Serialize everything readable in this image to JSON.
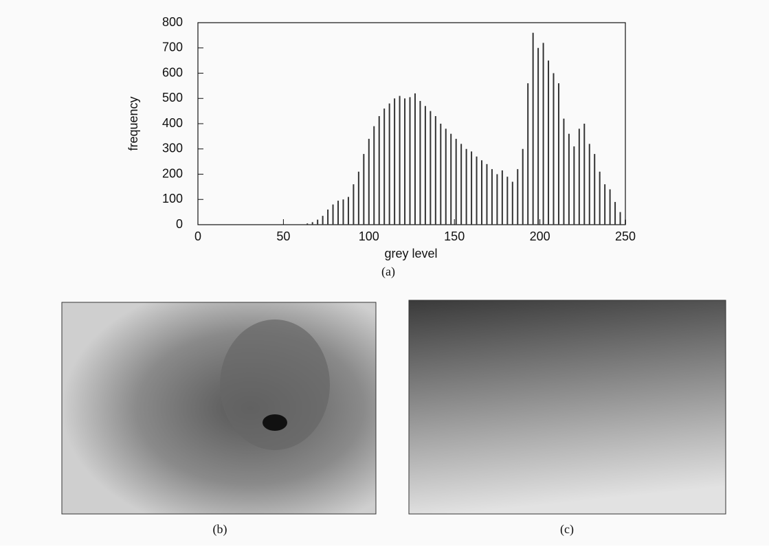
{
  "chart_data": {
    "type": "histogram",
    "x_label": "grey level",
    "y_label": "frequency",
    "caption": "(a)",
    "x": [
      64,
      67,
      70,
      73,
      76,
      79,
      82,
      85,
      88,
      91,
      94,
      97,
      100,
      103,
      106,
      109,
      112,
      115,
      118,
      121,
      124,
      127,
      130,
      133,
      136,
      139,
      142,
      145,
      148,
      151,
      154,
      157,
      160,
      163,
      166,
      169,
      172,
      175,
      178,
      181,
      184,
      187,
      190,
      193,
      196,
      199,
      202,
      205,
      208,
      211,
      214,
      217,
      220,
      223,
      226,
      229,
      232,
      235,
      238,
      241,
      244,
      247,
      250
    ],
    "values": [
      5,
      10,
      20,
      35,
      60,
      80,
      95,
      100,
      110,
      160,
      210,
      280,
      340,
      390,
      430,
      460,
      480,
      500,
      510,
      500,
      505,
      520,
      490,
      470,
      450,
      430,
      400,
      380,
      360,
      340,
      320,
      300,
      290,
      270,
      255,
      240,
      220,
      200,
      215,
      190,
      170,
      220,
      300,
      560,
      760,
      700,
      720,
      650,
      600,
      560,
      420,
      360,
      310,
      380,
      400,
      320,
      280,
      210,
      160,
      140,
      90,
      50,
      20
    ],
    "color": "#333333",
    "xlim": [
      0,
      250
    ],
    "xticks": [
      0,
      50,
      100,
      150,
      200,
      250
    ],
    "ylim": [
      0,
      800
    ],
    "yticks": [
      0,
      100,
      200,
      300,
      400,
      500,
      600,
      700,
      800
    ]
  },
  "figures": [
    {
      "caption": "(b)"
    },
    {
      "caption": "(c)"
    }
  ]
}
